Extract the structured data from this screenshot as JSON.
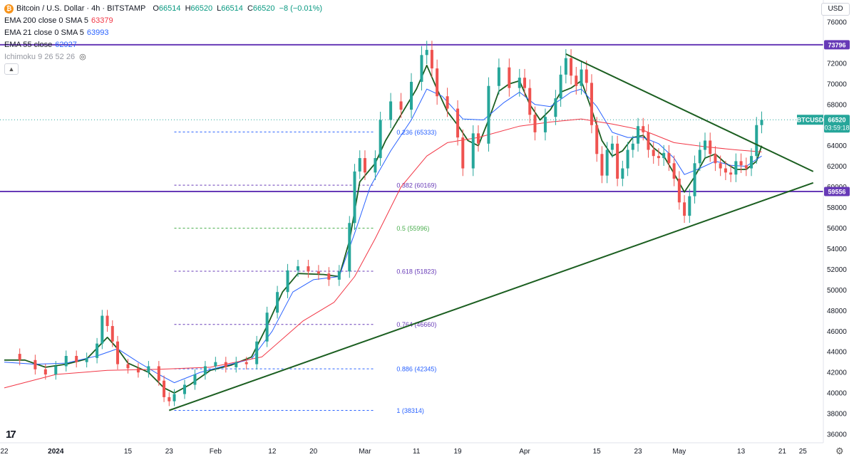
{
  "header": {
    "symbol_title": "Bitcoin / U.S. Dollar · 4h · BITSTAMP",
    "ohlc": [
      {
        "k": "O",
        "v": "66514"
      },
      {
        "k": "H",
        "v": "66520"
      },
      {
        "k": "L",
        "v": "66514"
      },
      {
        "k": "C",
        "v": "66520"
      }
    ],
    "change": "−8 (−0.01%)",
    "indicators": [
      {
        "label": "EMA 200 close 0 SMA 5",
        "value": "63379",
        "color": "#f23645"
      },
      {
        "label": "EMA 21 close 0 SMA 5",
        "value": "63993",
        "color": "#2962ff"
      },
      {
        "label": "EMA 55 close",
        "value": "62927",
        "color": "#2962ff"
      }
    ],
    "ichimoku": "Ichimoku 9 26 52 26",
    "currency": "USD",
    "logo": "17"
  },
  "chart_data": {
    "type": "line",
    "ylim": [
      35000,
      77000
    ],
    "y_ticks": [
      "76000",
      "74000",
      "72000",
      "70000",
      "68000",
      "66000",
      "64000",
      "62000",
      "60000",
      "58000",
      "56000",
      "54000",
      "52000",
      "50000",
      "48000",
      "46000",
      "44000",
      "42000",
      "40000",
      "38000",
      "36000"
    ],
    "x_labels": [
      {
        "t": "22",
        "d": 0
      },
      {
        "t": "2024",
        "d": 10,
        "bold": true
      },
      {
        "t": "15",
        "d": 24
      },
      {
        "t": "23",
        "d": 32
      },
      {
        "t": "Feb",
        "d": 41
      },
      {
        "t": "12",
        "d": 52
      },
      {
        "t": "20",
        "d": 60
      },
      {
        "t": "Mar",
        "d": 70
      },
      {
        "t": "11",
        "d": 80
      },
      {
        "t": "19",
        "d": 88
      },
      {
        "t": "Apr",
        "d": 101
      },
      {
        "t": "15",
        "d": 115
      },
      {
        "t": "23",
        "d": 123
      },
      {
        "t": "May",
        "d": 131
      },
      {
        "t": "13",
        "d": 143
      },
      {
        "t": "21",
        "d": 151
      },
      {
        "t": "25",
        "d": 155
      }
    ],
    "xlim_days": [
      0,
      158
    ],
    "price_series": {
      "name": "BTCUSD",
      "color": "#26a69a",
      "points": [
        [
          0,
          43800
        ],
        [
          3,
          43200
        ],
        [
          6,
          42300
        ],
        [
          8,
          41800
        ],
        [
          10,
          42600
        ],
        [
          12,
          43600
        ],
        [
          14,
          43000
        ],
        [
          16,
          43400
        ],
        [
          18,
          44800
        ],
        [
          19,
          47500
        ],
        [
          20,
          46500
        ],
        [
          21,
          45000
        ],
        [
          22,
          42800
        ],
        [
          24,
          42400
        ],
        [
          26,
          42000
        ],
        [
          28,
          42600
        ],
        [
          30,
          41200
        ],
        [
          31,
          39600
        ],
        [
          32,
          39200
        ],
        [
          33,
          39900
        ],
        [
          35,
          40800
        ],
        [
          37,
          41800
        ],
        [
          39,
          42600
        ],
        [
          41,
          43000
        ],
        [
          43,
          42500
        ],
        [
          45,
          43000
        ],
        [
          47,
          42800
        ],
        [
          49,
          45000
        ],
        [
          51,
          47800
        ],
        [
          53,
          49800
        ],
        [
          55,
          51900
        ],
        [
          57,
          52300
        ],
        [
          59,
          51800
        ],
        [
          61,
          51600
        ],
        [
          63,
          51000
        ],
        [
          65,
          51800
        ],
        [
          67,
          56500
        ],
        [
          68,
          61500
        ],
        [
          69,
          62800
        ],
        [
          70,
          61400
        ],
        [
          72,
          62800
        ],
        [
          73,
          66500
        ],
        [
          75,
          68300
        ],
        [
          77,
          67500
        ],
        [
          79,
          70200
        ],
        [
          81,
          72800
        ],
        [
          82,
          73300
        ],
        [
          83,
          71500
        ],
        [
          84,
          68800
        ],
        [
          86,
          67600
        ],
        [
          88,
          64800
        ],
        [
          89,
          61800
        ],
        [
          91,
          65200
        ],
        [
          92,
          64200
        ],
        [
          94,
          69800
        ],
        [
          96,
          71600
        ],
        [
          98,
          69600
        ],
        [
          100,
          70600
        ],
        [
          101,
          69600
        ],
        [
          102,
          67000
        ],
        [
          103,
          65300
        ],
        [
          105,
          66800
        ],
        [
          107,
          68600
        ],
        [
          108,
          70900
        ],
        [
          109,
          72500
        ],
        [
          110,
          70800
        ],
        [
          111,
          69800
        ],
        [
          112,
          71400
        ],
        [
          113,
          70100
        ],
        [
          114,
          66000
        ],
        [
          115,
          63200
        ],
        [
          116,
          61100
        ],
        [
          117,
          63600
        ],
        [
          118,
          64200
        ],
        [
          119,
          60800
        ],
        [
          120,
          61800
        ],
        [
          121,
          63600
        ],
        [
          122,
          64200
        ],
        [
          123,
          65900
        ],
        [
          124,
          65300
        ],
        [
          125,
          63600
        ],
        [
          126,
          63000
        ],
        [
          127,
          62800
        ],
        [
          128,
          63300
        ],
        [
          129,
          62300
        ],
        [
          130,
          60800
        ],
        [
          131,
          58500
        ],
        [
          132,
          57200
        ],
        [
          133,
          59100
        ],
        [
          134,
          62300
        ],
        [
          135,
          63600
        ],
        [
          136,
          64500
        ],
        [
          137,
          63200
        ],
        [
          138,
          62300
        ],
        [
          139,
          61800
        ],
        [
          140,
          61400
        ],
        [
          141,
          61200
        ],
        [
          142,
          62500
        ],
        [
          143,
          62100
        ],
        [
          144,
          61800
        ],
        [
          145,
          63000
        ],
        [
          146,
          66000
        ],
        [
          147,
          66520
        ]
      ]
    },
    "ema_series": [
      {
        "color": "#1b5e20",
        "lw": 1.8,
        "points": [
          [
            0,
            43200
          ],
          [
            4,
            43200
          ],
          [
            8,
            42500
          ],
          [
            12,
            42800
          ],
          [
            16,
            43300
          ],
          [
            20,
            45400
          ],
          [
            22,
            44300
          ],
          [
            24,
            42900
          ],
          [
            28,
            42000
          ],
          [
            31,
            40500
          ],
          [
            33,
            40000
          ],
          [
            36,
            40800
          ],
          [
            40,
            42200
          ],
          [
            44,
            42700
          ],
          [
            48,
            43500
          ],
          [
            51,
            46500
          ],
          [
            54,
            49800
          ],
          [
            57,
            51600
          ],
          [
            62,
            51500
          ],
          [
            65,
            51300
          ],
          [
            67,
            54800
          ],
          [
            69,
            60500
          ],
          [
            72,
            62300
          ],
          [
            74,
            64500
          ],
          [
            77,
            67000
          ],
          [
            80,
            69500
          ],
          [
            82,
            71800
          ],
          [
            84,
            69500
          ],
          [
            86,
            67300
          ],
          [
            88,
            66000
          ],
          [
            90,
            64500
          ],
          [
            92,
            64000
          ],
          [
            94,
            66500
          ],
          [
            96,
            69300
          ],
          [
            98,
            70000
          ],
          [
            100,
            70300
          ],
          [
            102,
            68000
          ],
          [
            104,
            66500
          ],
          [
            106,
            67500
          ],
          [
            108,
            69200
          ],
          [
            110,
            69600
          ],
          [
            112,
            70300
          ],
          [
            114,
            67500
          ],
          [
            116,
            64500
          ],
          [
            118,
            63000
          ],
          [
            120,
            63500
          ],
          [
            122,
            64800
          ],
          [
            124,
            65000
          ],
          [
            126,
            63800
          ],
          [
            128,
            63000
          ],
          [
            130,
            61300
          ],
          [
            132,
            59500
          ],
          [
            134,
            61000
          ],
          [
            136,
            62800
          ],
          [
            138,
            63200
          ],
          [
            140,
            62300
          ],
          [
            142,
            61700
          ],
          [
            144,
            61700
          ],
          [
            146,
            62500
          ],
          [
            147,
            64000
          ]
        ]
      },
      {
        "color": "#2962ff",
        "lw": 1,
        "points": [
          [
            0,
            43000
          ],
          [
            6,
            42800
          ],
          [
            12,
            42900
          ],
          [
            18,
            43600
          ],
          [
            22,
            44300
          ],
          [
            26,
            43000
          ],
          [
            30,
            41800
          ],
          [
            33,
            41000
          ],
          [
            38,
            42000
          ],
          [
            44,
            42800
          ],
          [
            48,
            43300
          ],
          [
            52,
            46000
          ],
          [
            56,
            49800
          ],
          [
            60,
            51000
          ],
          [
            65,
            51300
          ],
          [
            68,
            55500
          ],
          [
            71,
            60000
          ],
          [
            75,
            63500
          ],
          [
            79,
            66500
          ],
          [
            82,
            69500
          ],
          [
            85,
            68800
          ],
          [
            89,
            66600
          ],
          [
            93,
            66500
          ],
          [
            97,
            68200
          ],
          [
            100,
            69200
          ],
          [
            103,
            68000
          ],
          [
            106,
            67800
          ],
          [
            110,
            69200
          ],
          [
            112,
            69500
          ],
          [
            115,
            67800
          ],
          [
            118,
            65300
          ],
          [
            121,
            64800
          ],
          [
            124,
            64800
          ],
          [
            127,
            64200
          ],
          [
            130,
            62800
          ],
          [
            132,
            61200
          ],
          [
            135,
            61800
          ],
          [
            138,
            62500
          ],
          [
            141,
            62100
          ],
          [
            144,
            62000
          ],
          [
            147,
            63000
          ]
        ]
      },
      {
        "color": "#f23645",
        "lw": 1,
        "points": [
          [
            0,
            40500
          ],
          [
            10,
            41800
          ],
          [
            20,
            42200
          ],
          [
            30,
            42300
          ],
          [
            40,
            42500
          ],
          [
            50,
            43500
          ],
          [
            58,
            47000
          ],
          [
            64,
            48800
          ],
          [
            68,
            51300
          ],
          [
            72,
            55000
          ],
          [
            77,
            60000
          ],
          [
            82,
            63000
          ],
          [
            86,
            64300
          ],
          [
            92,
            64800
          ],
          [
            100,
            65900
          ],
          [
            106,
            66300
          ],
          [
            112,
            66600
          ],
          [
            118,
            66100
          ],
          [
            124,
            65500
          ],
          [
            130,
            64300
          ],
          [
            136,
            63900
          ],
          [
            142,
            63600
          ],
          [
            147,
            63400
          ]
        ]
      }
    ],
    "resistance_line": {
      "value": 73796,
      "label": "73796",
      "color": "#673ab7"
    },
    "support_line": {
      "value": 59556,
      "label": "59556",
      "color": "#673ab7"
    },
    "current_price": {
      "value": 66520,
      "symbol": "BTCUSD",
      "price": "66520",
      "countdown": "03:59:18",
      "color": "#26a69a"
    },
    "trendlines": [
      {
        "from": [
          32,
          38314
        ],
        "to": [
          157,
          60400
        ],
        "color": "#1b5e20"
      },
      {
        "from": [
          109,
          72900
        ],
        "to": [
          157,
          61500
        ],
        "color": "#1b5e20"
      }
    ],
    "fibonacci": [
      {
        "label": "0.236 (65333)",
        "value": 65333,
        "color": "#2962ff"
      },
      {
        "label": "0.382 (60169)",
        "value": 60169,
        "color": "#673ab7"
      },
      {
        "label": "0.5 (55996)",
        "value": 55996,
        "color": "#4caf50"
      },
      {
        "label": "0.618 (51823)",
        "value": 51823,
        "color": "#673ab7"
      },
      {
        "label": "0.764 (46660)",
        "value": 46660,
        "color": "#673ab7"
      },
      {
        "label": "0.886 (42345)",
        "value": 42345,
        "color": "#2962ff"
      },
      {
        "label": "1 (38314)",
        "value": 38314,
        "color": "#2962ff"
      }
    ],
    "fib_x_days": [
      33,
      72
    ]
  }
}
